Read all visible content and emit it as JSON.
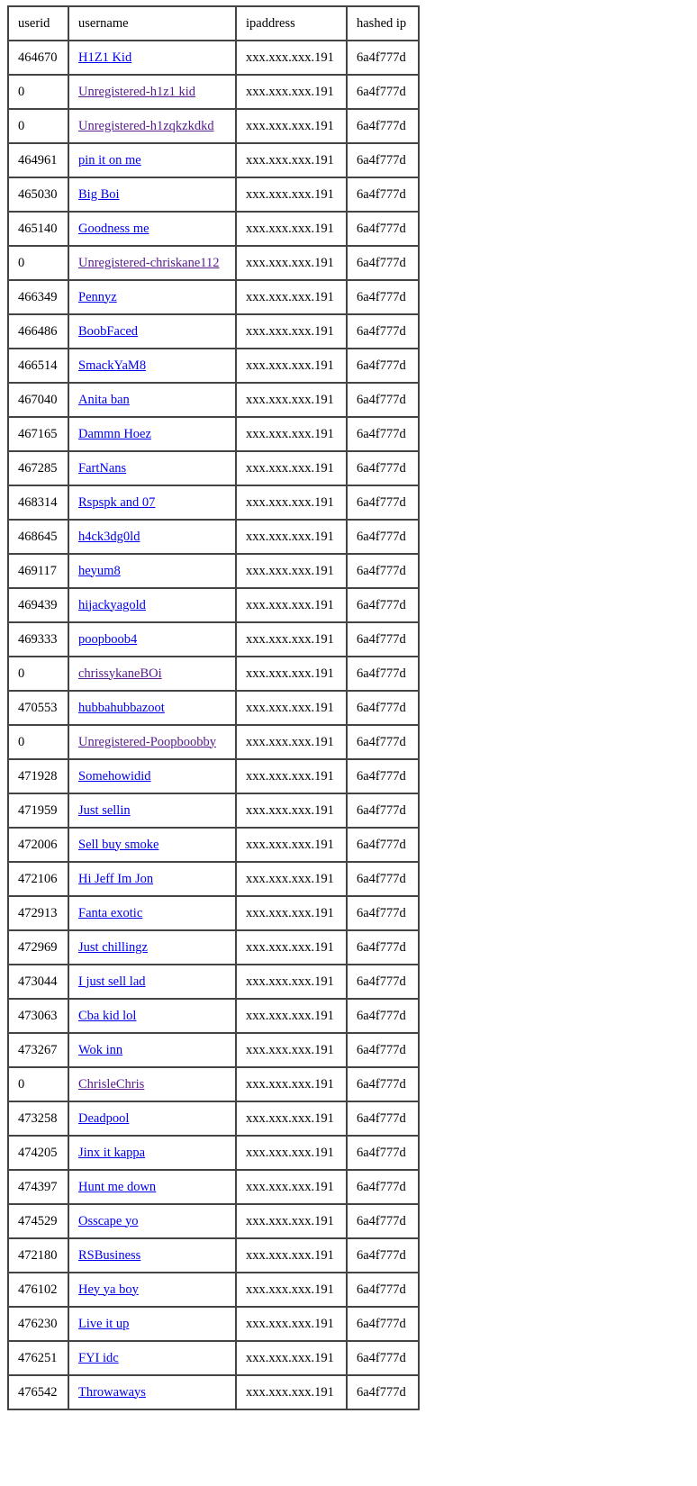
{
  "colors": {
    "link": "#0000EE",
    "visited_link": "#551A8B",
    "border": "#444444"
  },
  "table": {
    "headers": [
      "userid",
      "username",
      "ipaddress",
      "hashed ip"
    ],
    "rows": [
      {
        "userid": "464670",
        "username": "H1Z1 Kid",
        "ipaddress": "xxx.xxx.xxx.191",
        "hashed_ip": "6a4f777d",
        "visited": false
      },
      {
        "userid": "0",
        "username": "Unregistered-h1z1 kid",
        "ipaddress": "xxx.xxx.xxx.191",
        "hashed_ip": "6a4f777d",
        "visited": true
      },
      {
        "userid": "0",
        "username": "Unregistered-h1zqkzkdkd",
        "ipaddress": "xxx.xxx.xxx.191",
        "hashed_ip": "6a4f777d",
        "visited": true
      },
      {
        "userid": "464961",
        "username": "pin it on me",
        "ipaddress": "xxx.xxx.xxx.191",
        "hashed_ip": "6a4f777d",
        "visited": false
      },
      {
        "userid": "465030",
        "username": "Big Boi",
        "ipaddress": "xxx.xxx.xxx.191",
        "hashed_ip": "6a4f777d",
        "visited": false
      },
      {
        "userid": "465140",
        "username": "Goodness me",
        "ipaddress": "xxx.xxx.xxx.191",
        "hashed_ip": "6a4f777d",
        "visited": false
      },
      {
        "userid": "0",
        "username": "Unregistered-chriskane112",
        "ipaddress": "xxx.xxx.xxx.191",
        "hashed_ip": "6a4f777d",
        "visited": true
      },
      {
        "userid": "466349",
        "username": "Pennyz",
        "ipaddress": "xxx.xxx.xxx.191",
        "hashed_ip": "6a4f777d",
        "visited": false
      },
      {
        "userid": "466486",
        "username": "BoobFaced",
        "ipaddress": "xxx.xxx.xxx.191",
        "hashed_ip": "6a4f777d",
        "visited": false
      },
      {
        "userid": "466514",
        "username": "SmackYaM8",
        "ipaddress": "xxx.xxx.xxx.191",
        "hashed_ip": "6a4f777d",
        "visited": false
      },
      {
        "userid": "467040",
        "username": "Anita ban",
        "ipaddress": "xxx.xxx.xxx.191",
        "hashed_ip": "6a4f777d",
        "visited": false
      },
      {
        "userid": "467165",
        "username": "Dammn Hoez",
        "ipaddress": "xxx.xxx.xxx.191",
        "hashed_ip": "6a4f777d",
        "visited": false
      },
      {
        "userid": "467285",
        "username": "FartNans",
        "ipaddress": "xxx.xxx.xxx.191",
        "hashed_ip": "6a4f777d",
        "visited": false
      },
      {
        "userid": "468314",
        "username": "Rspspk and 07",
        "ipaddress": "xxx.xxx.xxx.191",
        "hashed_ip": "6a4f777d",
        "visited": false
      },
      {
        "userid": "468645",
        "username": "h4ck3dg0ld",
        "ipaddress": "xxx.xxx.xxx.191",
        "hashed_ip": "6a4f777d",
        "visited": false
      },
      {
        "userid": "469117",
        "username": "heyum8",
        "ipaddress": "xxx.xxx.xxx.191",
        "hashed_ip": "6a4f777d",
        "visited": false
      },
      {
        "userid": "469439",
        "username": "hijackyagold",
        "ipaddress": "xxx.xxx.xxx.191",
        "hashed_ip": "6a4f777d",
        "visited": false
      },
      {
        "userid": "469333",
        "username": "poopboob4",
        "ipaddress": "xxx.xxx.xxx.191",
        "hashed_ip": "6a4f777d",
        "visited": false
      },
      {
        "userid": "0",
        "username": "chrissykaneBOi",
        "ipaddress": "xxx.xxx.xxx.191",
        "hashed_ip": "6a4f777d",
        "visited": true
      },
      {
        "userid": "470553",
        "username": "hubbahubbazoot",
        "ipaddress": "xxx.xxx.xxx.191",
        "hashed_ip": "6a4f777d",
        "visited": false
      },
      {
        "userid": "0",
        "username": "Unregistered-Poopboobby",
        "ipaddress": "xxx.xxx.xxx.191",
        "hashed_ip": "6a4f777d",
        "visited": true
      },
      {
        "userid": "471928",
        "username": "Somehowidid",
        "ipaddress": "xxx.xxx.xxx.191",
        "hashed_ip": "6a4f777d",
        "visited": false
      },
      {
        "userid": "471959",
        "username": "Just sellin",
        "ipaddress": "xxx.xxx.xxx.191",
        "hashed_ip": "6a4f777d",
        "visited": false
      },
      {
        "userid": "472006",
        "username": "Sell buy smoke",
        "ipaddress": "xxx.xxx.xxx.191",
        "hashed_ip": "6a4f777d",
        "visited": false
      },
      {
        "userid": "472106",
        "username": "Hi Jeff Im Jon",
        "ipaddress": "xxx.xxx.xxx.191",
        "hashed_ip": "6a4f777d",
        "visited": false
      },
      {
        "userid": "472913",
        "username": "Fanta exotic",
        "ipaddress": "xxx.xxx.xxx.191",
        "hashed_ip": "6a4f777d",
        "visited": false
      },
      {
        "userid": "472969",
        "username": "Just chillingz",
        "ipaddress": "xxx.xxx.xxx.191",
        "hashed_ip": "6a4f777d",
        "visited": false
      },
      {
        "userid": "473044",
        "username": "I just sell lad",
        "ipaddress": "xxx.xxx.xxx.191",
        "hashed_ip": "6a4f777d",
        "visited": false
      },
      {
        "userid": "473063",
        "username": "Cba kid lol",
        "ipaddress": "xxx.xxx.xxx.191",
        "hashed_ip": "6a4f777d",
        "visited": false
      },
      {
        "userid": "473267",
        "username": "Wok inn",
        "ipaddress": "xxx.xxx.xxx.191",
        "hashed_ip": "6a4f777d",
        "visited": false
      },
      {
        "userid": "0",
        "username": "ChrisleChris",
        "ipaddress": "xxx.xxx.xxx.191",
        "hashed_ip": "6a4f777d",
        "visited": true
      },
      {
        "userid": "473258",
        "username": "Deadpool",
        "ipaddress": "xxx.xxx.xxx.191",
        "hashed_ip": "6a4f777d",
        "visited": false
      },
      {
        "userid": "474205",
        "username": "Jinx it kappa",
        "ipaddress": "xxx.xxx.xxx.191",
        "hashed_ip": "6a4f777d",
        "visited": false
      },
      {
        "userid": "474397",
        "username": "Hunt me down",
        "ipaddress": "xxx.xxx.xxx.191",
        "hashed_ip": "6a4f777d",
        "visited": false
      },
      {
        "userid": "474529",
        "username": "Osscape yo",
        "ipaddress": "xxx.xxx.xxx.191",
        "hashed_ip": "6a4f777d",
        "visited": false
      },
      {
        "userid": "472180",
        "username": "RSBusiness",
        "ipaddress": "xxx.xxx.xxx.191",
        "hashed_ip": "6a4f777d",
        "visited": false
      },
      {
        "userid": "476102",
        "username": "Hey ya boy",
        "ipaddress": "xxx.xxx.xxx.191",
        "hashed_ip": "6a4f777d",
        "visited": false
      },
      {
        "userid": "476230",
        "username": "Live it up",
        "ipaddress": "xxx.xxx.xxx.191",
        "hashed_ip": "6a4f777d",
        "visited": false
      },
      {
        "userid": "476251",
        "username": "FYI idc",
        "ipaddress": "xxx.xxx.xxx.191",
        "hashed_ip": "6a4f777d",
        "visited": false
      },
      {
        "userid": "476542",
        "username": "Throwaways",
        "ipaddress": "xxx.xxx.xxx.191",
        "hashed_ip": "6a4f777d",
        "visited": false
      }
    ]
  }
}
